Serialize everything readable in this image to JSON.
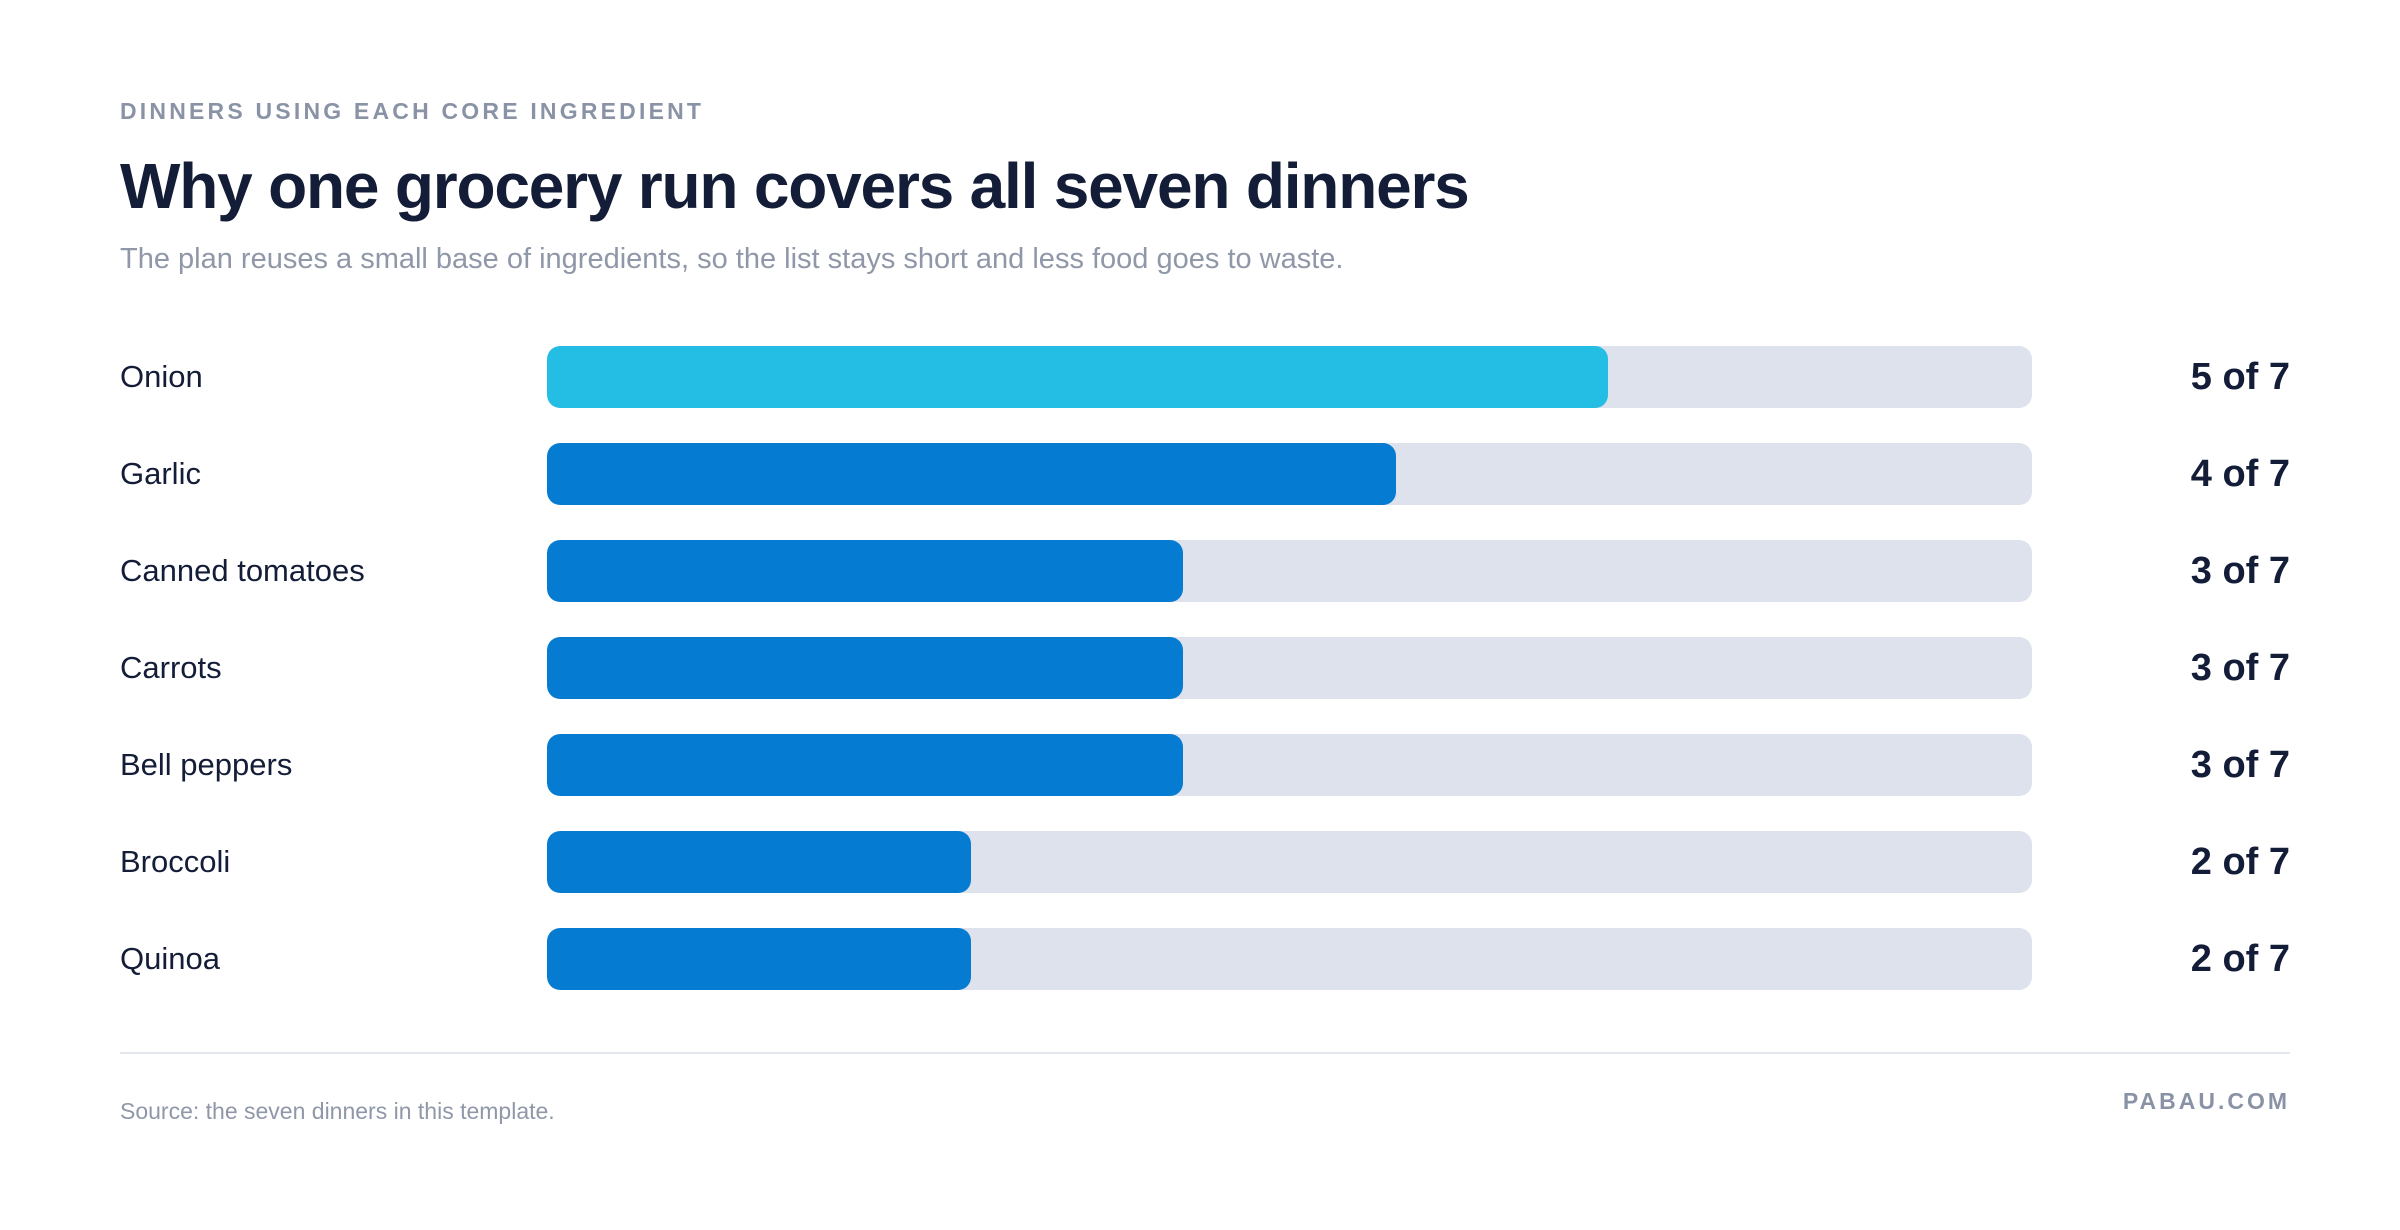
{
  "header": {
    "eyebrow": "DINNERS USING EACH CORE INGREDIENT",
    "title": "Why one grocery run covers all seven dinners",
    "subtitle": "The plan reuses a small base of ingredients, so the list stays short and less food goes to waste."
  },
  "colors": {
    "highlight": "#24bde3",
    "bar": "#067bd2",
    "track": "#dee2ec"
  },
  "chart_data": {
    "type": "bar",
    "orientation": "horizontal",
    "categories": [
      "Onion",
      "Garlic",
      "Canned tomatoes",
      "Carrots",
      "Bell peppers",
      "Broccoli",
      "Quinoa"
    ],
    "values": [
      5,
      4,
      3,
      3,
      3,
      2,
      2
    ],
    "max": 7,
    "value_labels": [
      "5 of 7",
      "4 of 7",
      "3 of 7",
      "3 of 7",
      "3 of 7",
      "2 of 7",
      "2 of 7"
    ],
    "highlighted_category": "Onion",
    "xlim": [
      0,
      7
    ]
  },
  "footer": {
    "source": "Source: the seven dinners in this template.",
    "brand": "PABAU.COM"
  }
}
